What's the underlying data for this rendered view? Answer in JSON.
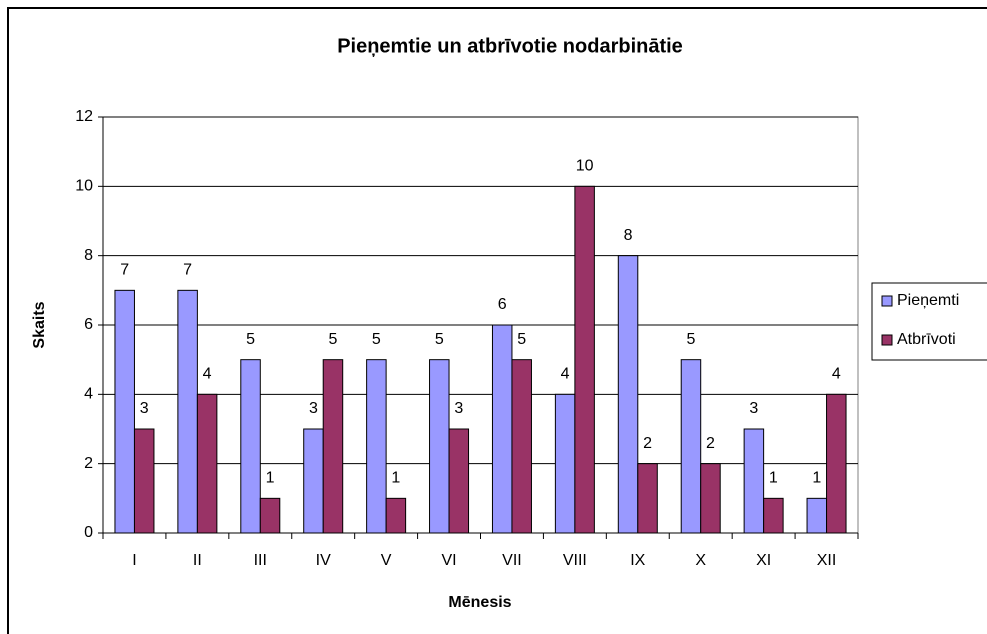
{
  "chart_data": {
    "type": "bar",
    "title": "Pieņemtie un atbrīvotie nodarbinātie",
    "x_label": "Mēnesis",
    "y_label": "Skaits",
    "categories": [
      "I",
      "II",
      "III",
      "IV",
      "V",
      "VI",
      "VII",
      "VIII",
      "IX",
      "X",
      "XI",
      "XII"
    ],
    "series": [
      {
        "name": "Pieņemti",
        "color": "#9999ff",
        "values": [
          7,
          7,
          5,
          3,
          5,
          5,
          6,
          4,
          8,
          5,
          3,
          1
        ]
      },
      {
        "name": "Atbrīvoti",
        "color": "#993366",
        "values": [
          3,
          4,
          1,
          5,
          1,
          3,
          5,
          10,
          2,
          2,
          1,
          4
        ]
      }
    ],
    "ylim": [
      0,
      12
    ],
    "yticks": [
      0,
      2,
      4,
      6,
      8,
      10,
      12
    ],
    "grid": true,
    "legend": "right"
  }
}
